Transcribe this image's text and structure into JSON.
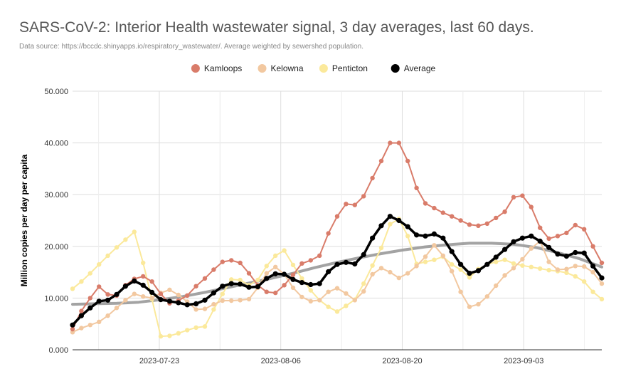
{
  "chart_data": {
    "type": "line",
    "title": "SARS-CoV-2: Interior Health wastewater signal, 3 day averages, last 60 days.",
    "subtitle": "Data source: https://bccdc.shinyapps.io/respiratory_wastewater/. Average weighted by sewershed population.",
    "xlabel": "",
    "ylabel": "Million copies per day per capita",
    "ylim": [
      0,
      50
    ],
    "yticks": [
      "0.000",
      "10.000",
      "20.000",
      "30.000",
      "40.000",
      "50.000"
    ],
    "xticks": [
      "2023-07-23",
      "2023-08-06",
      "2023-08-20",
      "2023-09-03"
    ],
    "x_start": "2023-07-13",
    "x_end": "2023-09-12",
    "grid": true,
    "legend_position": "top",
    "series": [
      {
        "name": "Kamloops",
        "color": "#d97c6a",
        "values": [
          4.0,
          7.5,
          10.0,
          12.2,
          10.7,
          10.5,
          12.5,
          13.7,
          14.2,
          13.2,
          10.8,
          9.0,
          9.5,
          10.5,
          12.3,
          13.8,
          15.5,
          17.0,
          17.3,
          16.8,
          14.8,
          12.5,
          11.2,
          11.0,
          12.5,
          14.5,
          16.7,
          17.3,
          18.2,
          22.5,
          25.8,
          28.2,
          28.0,
          29.7,
          33.2,
          36.5,
          40.0,
          40.0,
          36.5,
          31.3,
          28.3,
          27.4,
          26.5,
          25.8,
          25.0,
          24.2,
          24.0,
          24.4,
          25.5,
          26.7,
          29.5,
          29.8,
          27.6,
          23.6,
          21.5,
          22.0,
          22.6,
          24.1,
          23.3,
          20.0,
          16.8
        ]
      },
      {
        "name": "Kelowna",
        "color": "#f2c8a0",
        "values": [
          3.4,
          4.2,
          4.8,
          5.4,
          6.6,
          8.1,
          9.6,
          10.8,
          10.3,
          10.0,
          11.0,
          11.6,
          10.6,
          9.3,
          7.8,
          7.9,
          8.8,
          9.5,
          9.5,
          9.6,
          9.8,
          12.0,
          14.8,
          16.0,
          14.6,
          12.0,
          10.2,
          9.4,
          9.6,
          11.2,
          11.9,
          10.9,
          9.6,
          11.3,
          14.6,
          15.8,
          15.0,
          13.9,
          14.8,
          16.2,
          18.0,
          20.2,
          18.2,
          15.2,
          11.2,
          8.3,
          8.8,
          10.3,
          12.4,
          14.4,
          15.8,
          17.5,
          19.6,
          21.0,
          17.0,
          15.5,
          15.6,
          16.2,
          16.1,
          15.0,
          12.8
        ]
      },
      {
        "name": "Penticton",
        "color": "#fbe99b",
        "values": [
          11.8,
          13.2,
          14.8,
          16.5,
          18.2,
          19.8,
          21.3,
          22.8,
          16.8,
          9.8,
          2.6,
          2.7,
          3.2,
          3.8,
          4.3,
          4.5,
          7.8,
          10.8,
          13.6,
          13.5,
          12.5,
          13.5,
          16.2,
          18.2,
          19.2,
          16.4,
          13.8,
          11.5,
          9.6,
          8.3,
          7.4,
          8.5,
          9.7,
          12.8,
          16.3,
          19.7,
          24.3,
          25.3,
          22.0,
          16.6,
          17.0,
          17.4,
          18.0,
          16.5,
          15.5,
          14.0,
          15.6,
          16.5,
          17.0,
          17.4,
          16.7,
          16.3,
          16.0,
          15.7,
          15.4,
          15.2,
          14.9,
          14.2,
          13.2,
          11.2,
          9.8
        ]
      },
      {
        "name": "Average",
        "color": "#000000",
        "values": [
          4.8,
          6.6,
          8.1,
          9.4,
          9.6,
          10.7,
          12.3,
          13.3,
          12.5,
          11.1,
          9.7,
          9.4,
          9.1,
          8.7,
          8.9,
          9.6,
          11.0,
          12.3,
          12.8,
          12.7,
          12.1,
          12.2,
          13.8,
          14.7,
          14.6,
          13.6,
          13.0,
          12.6,
          12.8,
          15.1,
          16.5,
          16.9,
          16.6,
          18.4,
          21.6,
          24.0,
          25.8,
          25.0,
          23.8,
          22.2,
          22.0,
          22.4,
          21.6,
          19.0,
          16.5,
          14.8,
          15.3,
          16.5,
          17.9,
          19.4,
          20.9,
          21.6,
          22.0,
          21.0,
          19.8,
          18.5,
          18.1,
          18.8,
          18.7,
          16.2,
          13.9
        ]
      }
    ],
    "trend": {
      "color": "#999999",
      "values": [
        8.8,
        8.9,
        9.0,
        9.2,
        9.7,
        10.3,
        11.1,
        12.0,
        12.9,
        13.8,
        14.8,
        15.9,
        16.9,
        17.8,
        18.6,
        19.3,
        19.9,
        20.3,
        20.6,
        20.6,
        20.4,
        19.8,
        18.8,
        17.6,
        16.0
      ]
    }
  }
}
